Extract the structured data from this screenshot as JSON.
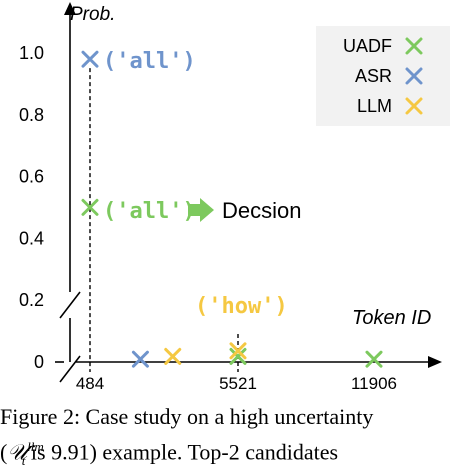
{
  "chart_data": {
    "type": "scatter",
    "xlabel": "Token ID",
    "ylabel": "Prob.",
    "y_ticks": [
      "0",
      "0.2",
      "0.4",
      "0.6",
      "0.8",
      "1.0"
    ],
    "x_ticks": [
      {
        "value": 484,
        "label": "484"
      },
      {
        "value": 5521,
        "label": "5521"
      },
      {
        "value": 11906,
        "label": "11906"
      }
    ],
    "axis_breaks": [
      "x",
      "y"
    ],
    "grid": false,
    "legend_position": "top-right",
    "series": [
      {
        "name": "UADF",
        "color": "#7dc95e",
        "marker": "x",
        "points": [
          {
            "x": 484,
            "y": 0.5
          },
          {
            "x": 5521,
            "y": 0.02
          },
          {
            "x": 11906,
            "y": 0.01
          }
        ]
      },
      {
        "name": "ASR",
        "color": "#6f94cc",
        "marker": "x",
        "points": [
          {
            "x": 484,
            "y": 0.98
          },
          {
            "x": 2200,
            "y": 0.01
          }
        ]
      },
      {
        "name": "LLM",
        "color": "#f5c842",
        "marker": "x",
        "points": [
          {
            "x": 3300,
            "y": 0.02
          },
          {
            "x": 5521,
            "y": 0.04
          }
        ]
      }
    ],
    "annotations": [
      {
        "text": "('all')",
        "color": "#6f94cc",
        "at": {
          "x": 484,
          "y": 0.98
        }
      },
      {
        "text": "('all')",
        "color": "#7dc95e",
        "at": {
          "x": 484,
          "y": 0.5
        }
      },
      {
        "text": "('how')",
        "color": "#f5c842",
        "at": {
          "x": 5521,
          "y": 0.04
        }
      },
      {
        "text": "Decsion",
        "color": "#000000",
        "arrow_color": "#7dc95e"
      }
    ]
  },
  "caption": {
    "line1": "Figure 2: Case study on a high uncertainty",
    "line2_open": "(",
    "line2_symbol": "𝒰",
    "line2_sup": "llm",
    "line2_sub": "t",
    "line2_rest": " is 9.91) example. Top-2 candidates"
  }
}
